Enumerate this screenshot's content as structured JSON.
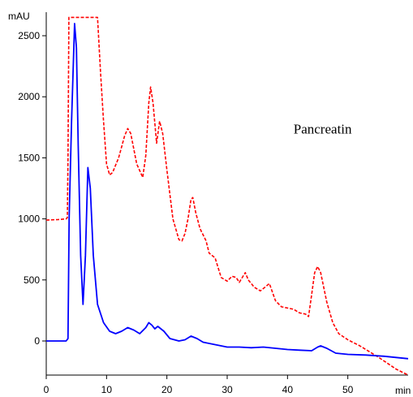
{
  "chart_data": {
    "type": "line",
    "title": "",
    "xlabel": "min",
    "ylabel": "mAU",
    "xlim": [
      0,
      60
    ],
    "ylim": [
      -300,
      2650
    ],
    "x_ticks": [
      0,
      10,
      20,
      30,
      40,
      50
    ],
    "y_ticks": [
      0,
      500,
      1000,
      1500,
      2000,
      2500
    ],
    "grid": false,
    "legend": "none",
    "annotations": [
      {
        "text": "Pancreatin",
        "x": 41,
        "y": 1700
      }
    ],
    "series": [
      {
        "color": "#ff0000",
        "style": "dashed",
        "points": [
          [
            0,
            990
          ],
          [
            2,
            995
          ],
          [
            3.3,
            1000
          ],
          [
            3.5,
            1010
          ],
          [
            3.6,
            1500
          ],
          [
            3.75,
            2650
          ],
          [
            8.5,
            2650
          ],
          [
            9,
            2200
          ],
          [
            9.5,
            1800
          ],
          [
            10,
            1450
          ],
          [
            10.5,
            1360
          ],
          [
            11,
            1380
          ],
          [
            12,
            1500
          ],
          [
            13,
            1680
          ],
          [
            13.5,
            1740
          ],
          [
            14,
            1700
          ],
          [
            15,
            1450
          ],
          [
            16,
            1340
          ],
          [
            16.5,
            1520
          ],
          [
            17,
            1950
          ],
          [
            17.3,
            2080
          ],
          [
            17.7,
            1950
          ],
          [
            18.3,
            1620
          ],
          [
            18.8,
            1800
          ],
          [
            19.3,
            1700
          ],
          [
            20,
            1400
          ],
          [
            21,
            1000
          ],
          [
            22,
            830
          ],
          [
            22.5,
            820
          ],
          [
            23,
            880
          ],
          [
            23.5,
            1000
          ],
          [
            24,
            1160
          ],
          [
            24.3,
            1175
          ],
          [
            24.8,
            1050
          ],
          [
            25.5,
            920
          ],
          [
            26.5,
            820
          ],
          [
            27,
            720
          ],
          [
            28,
            680
          ],
          [
            29,
            520
          ],
          [
            30,
            490
          ],
          [
            30.8,
            530
          ],
          [
            31.5,
            520
          ],
          [
            32,
            480
          ],
          [
            33,
            560
          ],
          [
            33.5,
            500
          ],
          [
            34.5,
            440
          ],
          [
            35.5,
            410
          ],
          [
            36.5,
            450
          ],
          [
            37,
            470
          ],
          [
            38,
            330
          ],
          [
            39,
            280
          ],
          [
            40,
            270
          ],
          [
            41,
            260
          ],
          [
            42,
            230
          ],
          [
            43,
            220
          ],
          [
            43.5,
            200
          ],
          [
            44,
            380
          ],
          [
            44.5,
            560
          ],
          [
            45,
            610
          ],
          [
            45.5,
            560
          ],
          [
            46.5,
            320
          ],
          [
            47.5,
            150
          ],
          [
            48.5,
            60
          ],
          [
            50,
            10
          ],
          [
            52,
            -40
          ],
          [
            55,
            -130
          ],
          [
            58,
            -230
          ],
          [
            60,
            -300
          ]
        ]
      },
      {
        "color": "#0000ff",
        "style": "solid",
        "points": [
          [
            0,
            0
          ],
          [
            2,
            0
          ],
          [
            3.3,
            0
          ],
          [
            3.6,
            20
          ],
          [
            3.8,
            1000
          ],
          [
            4.2,
            1800
          ],
          [
            4.7,
            2600
          ],
          [
            5,
            2400
          ],
          [
            5.3,
            1600
          ],
          [
            5.7,
            700
          ],
          [
            6.1,
            300
          ],
          [
            6.5,
            700
          ],
          [
            6.9,
            1420
          ],
          [
            7.3,
            1250
          ],
          [
            7.8,
            700
          ],
          [
            8.5,
            300
          ],
          [
            9.5,
            150
          ],
          [
            10.5,
            80
          ],
          [
            11.5,
            60
          ],
          [
            12.5,
            80
          ],
          [
            13.5,
            110
          ],
          [
            14.5,
            90
          ],
          [
            15.5,
            60
          ],
          [
            16.5,
            110
          ],
          [
            17,
            150
          ],
          [
            17.5,
            130
          ],
          [
            18,
            100
          ],
          [
            18.5,
            120
          ],
          [
            19.5,
            80
          ],
          [
            20.5,
            20
          ],
          [
            22,
            0
          ],
          [
            23,
            10
          ],
          [
            24,
            40
          ],
          [
            25,
            20
          ],
          [
            26,
            -10
          ],
          [
            28,
            -30
          ],
          [
            30,
            -50
          ],
          [
            32,
            -50
          ],
          [
            34,
            -55
          ],
          [
            36,
            -50
          ],
          [
            38,
            -60
          ],
          [
            40,
            -70
          ],
          [
            42,
            -75
          ],
          [
            44,
            -80
          ],
          [
            45,
            -50
          ],
          [
            45.5,
            -40
          ],
          [
            46.5,
            -60
          ],
          [
            48,
            -100
          ],
          [
            50,
            -110
          ],
          [
            53,
            -115
          ],
          [
            56,
            -125
          ],
          [
            60,
            -145
          ]
        ]
      }
    ]
  }
}
